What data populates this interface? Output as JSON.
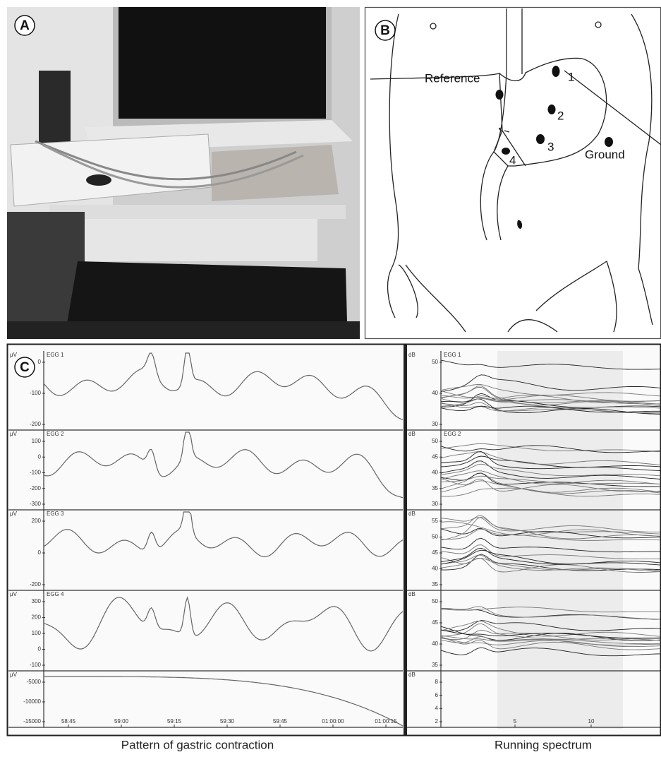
{
  "panels": {
    "a": {
      "label": "A"
    },
    "b": {
      "label": "B",
      "reference": "Reference",
      "ground": "Ground",
      "electrodes": [
        "1",
        "2",
        "3",
        "4"
      ]
    },
    "c": {
      "label": "C",
      "left": {
        "rows": [
          {
            "unit": "μV",
            "channel": "EGG 1",
            "ticks": [
              0,
              -100,
              -200
            ]
          },
          {
            "unit": "μV",
            "channel": "EGG 2",
            "ticks": [
              100,
              0,
              -100,
              -200,
              -300
            ]
          },
          {
            "unit": "μV",
            "channel": "EGG 3",
            "ticks": [
              200,
              0,
              -200
            ]
          },
          {
            "unit": "μV",
            "channel": "EGG 4",
            "ticks": [
              300,
              200,
              100,
              0,
              -100
            ]
          },
          {
            "unit": "μV",
            "ticks": [
              -5000,
              -10000,
              -15000
            ]
          }
        ],
        "xticks": [
          "58:45",
          "59:00",
          "59:15",
          "59:30",
          "59:45",
          "01:00:00",
          "01:00:15"
        ]
      },
      "right": {
        "rows": [
          {
            "unit": "dB",
            "channel": "EGG 1",
            "ticks": [
              50,
              40,
              30
            ]
          },
          {
            "unit": "dB",
            "channel": "EGG 2",
            "ticks": [
              50,
              45,
              40,
              35,
              30
            ]
          },
          {
            "unit": "dB",
            "ticks": [
              55,
              50,
              45,
              40,
              35
            ]
          },
          {
            "unit": "dB",
            "ticks": [
              50,
              45,
              40,
              35
            ]
          },
          {
            "unit": "dB",
            "ticks": [
              8,
              6,
              4,
              2
            ]
          }
        ],
        "xticks": [
          5,
          10
        ]
      }
    }
  },
  "captions": [
    "Pattern of gastric contraction",
    "Running spectrum"
  ]
}
